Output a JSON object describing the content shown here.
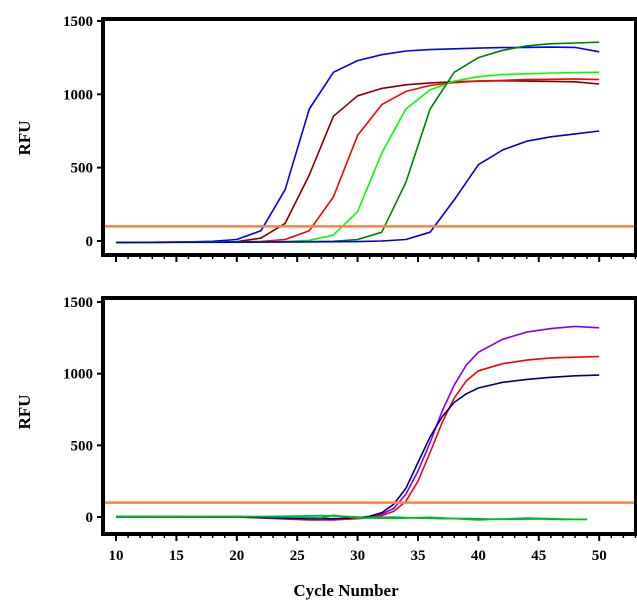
{
  "chart_data": [
    {
      "type": "line",
      "title": "",
      "xlabel": "",
      "ylabel": "RFU",
      "xlim": [
        10,
        54
      ],
      "ylim": [
        -60,
        1500
      ],
      "yticks": [
        0,
        500,
        1000,
        1500
      ],
      "threshold": 100,
      "series": [
        {
          "color": "#0000ff",
          "x": [
            10,
            15,
            18,
            20,
            22,
            24,
            26,
            28,
            30,
            32,
            34,
            36,
            38,
            40,
            42,
            44,
            46,
            48,
            50
          ],
          "y": [
            -10,
            -8,
            -2,
            10,
            70,
            350,
            900,
            1150,
            1230,
            1270,
            1295,
            1305,
            1310,
            1315,
            1318,
            1320,
            1322,
            1320,
            1290
          ]
        },
        {
          "color": "#800000",
          "x": [
            10,
            15,
            20,
            22,
            24,
            26,
            28,
            30,
            32,
            34,
            36,
            38,
            40,
            42,
            44,
            46,
            48,
            50
          ],
          "y": [
            -10,
            -8,
            -5,
            20,
            120,
            450,
            850,
            990,
            1040,
            1065,
            1078,
            1085,
            1090,
            1092,
            1090,
            1088,
            1085,
            1070
          ]
        },
        {
          "color": "#ff0000",
          "x": [
            10,
            15,
            20,
            22,
            24,
            26,
            28,
            30,
            32,
            34,
            36,
            38,
            40,
            42,
            44,
            46,
            48,
            50
          ],
          "y": [
            -10,
            -8,
            -6,
            -3,
            10,
            70,
            300,
            720,
            930,
            1020,
            1060,
            1080,
            1090,
            1095,
            1100,
            1102,
            1105,
            1100
          ]
        },
        {
          "color": "#00ff00",
          "x": [
            10,
            15,
            20,
            24,
            26,
            28,
            30,
            32,
            34,
            36,
            38,
            40,
            42,
            44,
            46,
            48,
            50
          ],
          "y": [
            -10,
            -8,
            -6,
            -4,
            5,
            40,
            200,
            600,
            900,
            1030,
            1090,
            1120,
            1135,
            1140,
            1145,
            1148,
            1150
          ]
        },
        {
          "color": "#008000",
          "x": [
            10,
            15,
            20,
            25,
            28,
            30,
            32,
            34,
            36,
            38,
            40,
            42,
            44,
            46,
            48,
            50
          ],
          "y": [
            -10,
            -8,
            -7,
            -5,
            -2,
            10,
            60,
            400,
            900,
            1150,
            1250,
            1300,
            1330,
            1345,
            1350,
            1355
          ]
        },
        {
          "color": "#0000cc",
          "x": [
            10,
            15,
            20,
            25,
            30,
            32,
            34,
            36,
            38,
            40,
            42,
            44,
            46,
            48,
            50
          ],
          "y": [
            -10,
            -9,
            -8,
            -6,
            -4,
            0,
            10,
            60,
            280,
            520,
            620,
            680,
            710,
            730,
            750
          ]
        }
      ]
    },
    {
      "type": "line",
      "title": "",
      "xlabel": "Cycle Number",
      "ylabel": "RFU",
      "xlim": [
        10,
        54
      ],
      "ylim": [
        -60,
        1500
      ],
      "xticks": [
        10,
        15,
        20,
        25,
        30,
        35,
        40,
        45,
        50
      ],
      "yticks": [
        0,
        500,
        1000,
        1500
      ],
      "threshold": 100,
      "series": [
        {
          "color": "#8000ff",
          "x": [
            10,
            20,
            26,
            28,
            30,
            31,
            32,
            33,
            34,
            35,
            36,
            37,
            38,
            39,
            40,
            42,
            44,
            46,
            48,
            50
          ],
          "y": [
            0,
            0,
            -20,
            -20,
            -10,
            0,
            20,
            60,
            160,
            320,
            520,
            740,
            920,
            1060,
            1150,
            1240,
            1290,
            1315,
            1330,
            1320
          ]
        },
        {
          "color": "#ff0000",
          "x": [
            10,
            20,
            26,
            28,
            30,
            31,
            32,
            33,
            34,
            35,
            36,
            37,
            38,
            39,
            40,
            42,
            44,
            46,
            48,
            50
          ],
          "y": [
            0,
            0,
            -15,
            -18,
            -12,
            -5,
            10,
            40,
            110,
            250,
            450,
            660,
            830,
            950,
            1020,
            1070,
            1095,
            1110,
            1115,
            1120
          ]
        },
        {
          "color": "#000080",
          "x": [
            10,
            20,
            26,
            28,
            30,
            31,
            32,
            33,
            34,
            35,
            36,
            37,
            38,
            39,
            40,
            42,
            44,
            46,
            48,
            50
          ],
          "y": [
            0,
            0,
            -10,
            -12,
            -5,
            5,
            30,
            90,
            200,
            380,
            560,
            700,
            800,
            860,
            900,
            940,
            960,
            975,
            985,
            990
          ]
        },
        {
          "color": "#00a0a0",
          "x": [
            10,
            20,
            25,
            27,
            29,
            31,
            33,
            35,
            37,
            39,
            41,
            43,
            45,
            47,
            49
          ],
          "y": [
            0,
            2,
            6,
            10,
            4,
            -4,
            0,
            -8,
            -12,
            -10,
            -14,
            -16,
            -14,
            -18,
            -16
          ]
        },
        {
          "color": "#00c000",
          "x": [
            10,
            20,
            24,
            27,
            28,
            30,
            33,
            36,
            40,
            44,
            47,
            49
          ],
          "y": [
            5,
            4,
            0,
            -5,
            12,
            -6,
            -10,
            -2,
            -20,
            -8,
            -14,
            -18
          ]
        }
      ]
    }
  ]
}
